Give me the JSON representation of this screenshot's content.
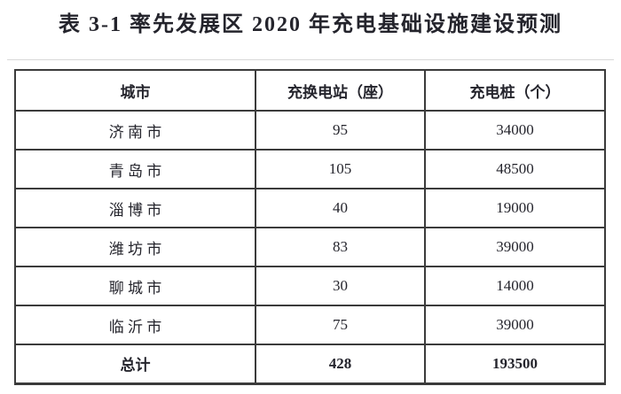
{
  "title": "表 3-1 率先发展区 2020 年充电基础设施建设预测",
  "table": {
    "headers": [
      "城市",
      "充换电站（座）",
      "充电桩（个）"
    ],
    "rows": [
      {
        "city": "济 南 市",
        "stations": "95",
        "piles": "34000"
      },
      {
        "city": "青 岛 市",
        "stations": "105",
        "piles": "48500"
      },
      {
        "city": "淄 博 市",
        "stations": "40",
        "piles": "19000"
      },
      {
        "city": "潍 坊 市",
        "stations": "83",
        "piles": "39000"
      },
      {
        "city": "聊 城 市",
        "stations": "30",
        "piles": "14000"
      },
      {
        "city": "临 沂 市",
        "stations": "75",
        "piles": "39000"
      }
    ],
    "total": {
      "label": "总计",
      "stations": "428",
      "piles": "193500"
    }
  },
  "colors": {
    "text": "#24242c",
    "border": "#3b3b3b",
    "background": "#ffffff",
    "artifact_line": "#d9d9d9"
  }
}
